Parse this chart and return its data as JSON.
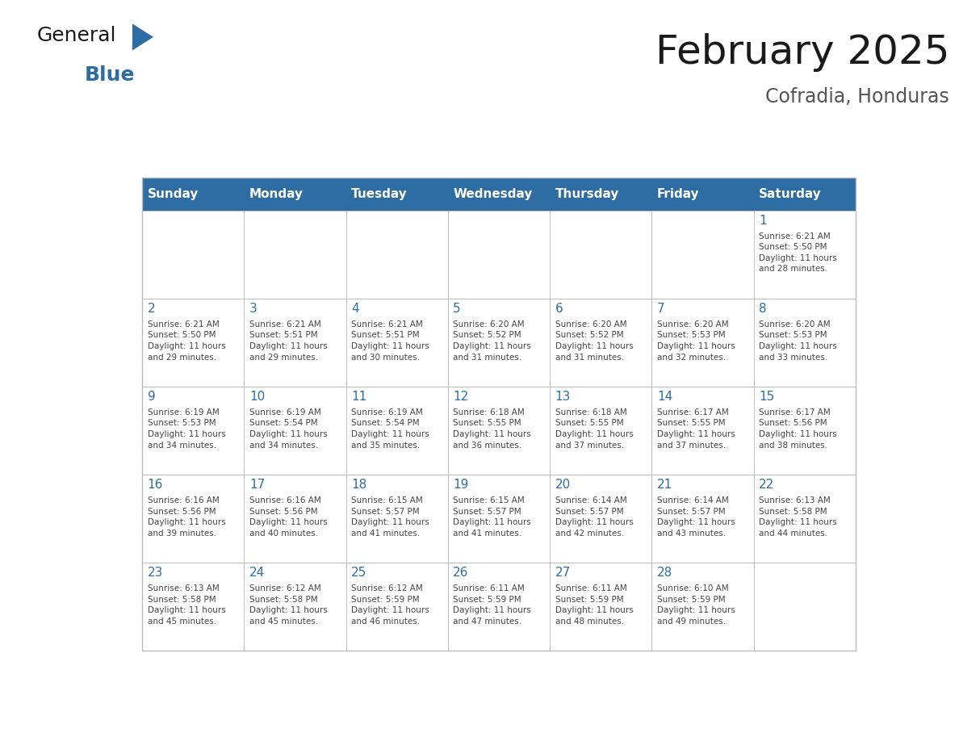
{
  "title": "February 2025",
  "subtitle": "Cofradia, Honduras",
  "days_of_week": [
    "Sunday",
    "Monday",
    "Tuesday",
    "Wednesday",
    "Thursday",
    "Friday",
    "Saturday"
  ],
  "header_bg": "#2E6DA4",
  "header_text": "#FFFFFF",
  "cell_bg": "#FFFFFF",
  "border_color": "#BBBBBB",
  "day_num_color": "#2E6DA4",
  "body_text_color": "#444444",
  "title_color": "#1A1A1A",
  "subtitle_color": "#555555",
  "logo_general_color": "#1A1A1A",
  "logo_blue_color": "#2E6DA4",
  "weeks": [
    [
      {
        "day": null,
        "info": null
      },
      {
        "day": null,
        "info": null
      },
      {
        "day": null,
        "info": null
      },
      {
        "day": null,
        "info": null
      },
      {
        "day": null,
        "info": null
      },
      {
        "day": null,
        "info": null
      },
      {
        "day": 1,
        "info": "Sunrise: 6:21 AM\nSunset: 5:50 PM\nDaylight: 11 hours\nand 28 minutes."
      }
    ],
    [
      {
        "day": 2,
        "info": "Sunrise: 6:21 AM\nSunset: 5:50 PM\nDaylight: 11 hours\nand 29 minutes."
      },
      {
        "day": 3,
        "info": "Sunrise: 6:21 AM\nSunset: 5:51 PM\nDaylight: 11 hours\nand 29 minutes."
      },
      {
        "day": 4,
        "info": "Sunrise: 6:21 AM\nSunset: 5:51 PM\nDaylight: 11 hours\nand 30 minutes."
      },
      {
        "day": 5,
        "info": "Sunrise: 6:20 AM\nSunset: 5:52 PM\nDaylight: 11 hours\nand 31 minutes."
      },
      {
        "day": 6,
        "info": "Sunrise: 6:20 AM\nSunset: 5:52 PM\nDaylight: 11 hours\nand 31 minutes."
      },
      {
        "day": 7,
        "info": "Sunrise: 6:20 AM\nSunset: 5:53 PM\nDaylight: 11 hours\nand 32 minutes."
      },
      {
        "day": 8,
        "info": "Sunrise: 6:20 AM\nSunset: 5:53 PM\nDaylight: 11 hours\nand 33 minutes."
      }
    ],
    [
      {
        "day": 9,
        "info": "Sunrise: 6:19 AM\nSunset: 5:53 PM\nDaylight: 11 hours\nand 34 minutes."
      },
      {
        "day": 10,
        "info": "Sunrise: 6:19 AM\nSunset: 5:54 PM\nDaylight: 11 hours\nand 34 minutes."
      },
      {
        "day": 11,
        "info": "Sunrise: 6:19 AM\nSunset: 5:54 PM\nDaylight: 11 hours\nand 35 minutes."
      },
      {
        "day": 12,
        "info": "Sunrise: 6:18 AM\nSunset: 5:55 PM\nDaylight: 11 hours\nand 36 minutes."
      },
      {
        "day": 13,
        "info": "Sunrise: 6:18 AM\nSunset: 5:55 PM\nDaylight: 11 hours\nand 37 minutes."
      },
      {
        "day": 14,
        "info": "Sunrise: 6:17 AM\nSunset: 5:55 PM\nDaylight: 11 hours\nand 37 minutes."
      },
      {
        "day": 15,
        "info": "Sunrise: 6:17 AM\nSunset: 5:56 PM\nDaylight: 11 hours\nand 38 minutes."
      }
    ],
    [
      {
        "day": 16,
        "info": "Sunrise: 6:16 AM\nSunset: 5:56 PM\nDaylight: 11 hours\nand 39 minutes."
      },
      {
        "day": 17,
        "info": "Sunrise: 6:16 AM\nSunset: 5:56 PM\nDaylight: 11 hours\nand 40 minutes."
      },
      {
        "day": 18,
        "info": "Sunrise: 6:15 AM\nSunset: 5:57 PM\nDaylight: 11 hours\nand 41 minutes."
      },
      {
        "day": 19,
        "info": "Sunrise: 6:15 AM\nSunset: 5:57 PM\nDaylight: 11 hours\nand 41 minutes."
      },
      {
        "day": 20,
        "info": "Sunrise: 6:14 AM\nSunset: 5:57 PM\nDaylight: 11 hours\nand 42 minutes."
      },
      {
        "day": 21,
        "info": "Sunrise: 6:14 AM\nSunset: 5:57 PM\nDaylight: 11 hours\nand 43 minutes."
      },
      {
        "day": 22,
        "info": "Sunrise: 6:13 AM\nSunset: 5:58 PM\nDaylight: 11 hours\nand 44 minutes."
      }
    ],
    [
      {
        "day": 23,
        "info": "Sunrise: 6:13 AM\nSunset: 5:58 PM\nDaylight: 11 hours\nand 45 minutes."
      },
      {
        "day": 24,
        "info": "Sunrise: 6:12 AM\nSunset: 5:58 PM\nDaylight: 11 hours\nand 45 minutes."
      },
      {
        "day": 25,
        "info": "Sunrise: 6:12 AM\nSunset: 5:59 PM\nDaylight: 11 hours\nand 46 minutes."
      },
      {
        "day": 26,
        "info": "Sunrise: 6:11 AM\nSunset: 5:59 PM\nDaylight: 11 hours\nand 47 minutes."
      },
      {
        "day": 27,
        "info": "Sunrise: 6:11 AM\nSunset: 5:59 PM\nDaylight: 11 hours\nand 48 minutes."
      },
      {
        "day": 28,
        "info": "Sunrise: 6:10 AM\nSunset: 5:59 PM\nDaylight: 11 hours\nand 49 minutes."
      },
      {
        "day": null,
        "info": null
      }
    ]
  ]
}
